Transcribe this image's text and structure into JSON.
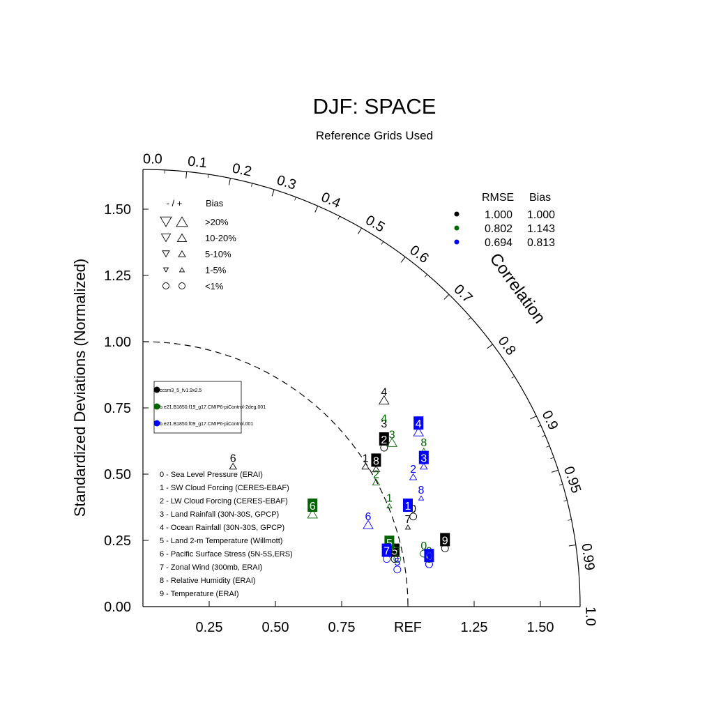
{
  "chart_data": {
    "type": "taylor",
    "title": "DJF: SPACE",
    "subtitle": "Reference Grids Used",
    "ylabel": "Standardized Deviations (Normalized)",
    "corr_title": "Correlation",
    "ref_label": "REF",
    "std_range": [
      0,
      1.65
    ],
    "std_ticks_y": [
      "0.00",
      "0.25",
      "0.50",
      "0.75",
      "1.00",
      "1.25",
      "1.50"
    ],
    "std_ticks_x": [
      "0.25",
      "0.50",
      "0.75",
      "REF",
      "1.25",
      "1.50"
    ],
    "corr_ticks": [
      "0.0",
      "0.1",
      "0.2",
      "0.3",
      "0.4",
      "0.5",
      "0.6",
      "0.7",
      "0.8",
      "0.9",
      "0.95",
      "0.99",
      "1.0"
    ],
    "ref_arc_std": 1.0,
    "bias_legend": {
      "header_sign": "- / +",
      "header_bias": "Bias",
      "rows": [
        ">20%",
        "10-20%",
        "5-10%",
        "1-5%",
        "<1%"
      ]
    },
    "stats_table": {
      "headers": [
        "RMSE",
        "Bias"
      ],
      "rows": [
        {
          "color": "#000000",
          "rmse": "1.000",
          "bias": "1.000"
        },
        {
          "color": "#006400",
          "rmse": "0.802",
          "bias": "1.143"
        },
        {
          "color": "#0000ff",
          "rmse": "0.694",
          "bias": "0.813"
        }
      ]
    },
    "series": [
      {
        "name": "ccsm3_5_fv1.9x2.5",
        "color": "#000000"
      },
      {
        "name": "b.e21.B1850.f19_g17.CMIP6-piControl-2deg.001",
        "color": "#006400"
      },
      {
        "name": "b.e21.B1850.f09_g17.CMIP6-piControl.001",
        "color": "#0000ff"
      }
    ],
    "variables": [
      "0 - Sea Level Pressure (ERAI)",
      "1 - SW Cloud Forcing (CERES-EBAF)",
      "2 - LW Cloud Forcing (CERES-EBAF)",
      "3 - Land Rainfall (30N-30S, GPCP)",
      "4 - Ocean Rainfall (30N-30S, GPCP)",
      "5 - Land 2-m Temperature (Willmott)",
      "6 - Pacific Surface Stress (5N-5S,ERS)",
      "7 - Zonal Wind (300mb, ERAI)",
      "8 - Relative Humidity (ERAI)",
      "9 - Temperature (ERAI)"
    ],
    "points": [
      {
        "s": 0,
        "v": "0",
        "x": 1.02,
        "y": 0.34,
        "box": false,
        "marker": "circle"
      },
      {
        "s": 0,
        "v": "1",
        "x": 0.84,
        "y": 0.53,
        "box": false,
        "marker": "up-sm"
      },
      {
        "s": 0,
        "v": "2",
        "x": 0.91,
        "y": 0.6,
        "box": true,
        "marker": "circle"
      },
      {
        "s": 0,
        "v": "3",
        "x": 0.91,
        "y": 0.66,
        "box": false,
        "marker": "none"
      },
      {
        "s": 0,
        "v": "4",
        "x": 0.91,
        "y": 0.78,
        "box": false,
        "marker": "up-md"
      },
      {
        "s": 0,
        "v": "5",
        "x": 0.95,
        "y": 0.18,
        "box": true,
        "marker": "circle"
      },
      {
        "s": 0,
        "v": "6",
        "x": 0.34,
        "y": 0.53,
        "box": false,
        "marker": "up-sm"
      },
      {
        "s": 0,
        "v": "7",
        "x": 1.0,
        "y": 0.3,
        "box": false,
        "marker": "up-xs"
      },
      {
        "s": 0,
        "v": "8",
        "x": 0.88,
        "y": 0.52,
        "box": true,
        "marker": "up-sm"
      },
      {
        "s": 0,
        "v": "9",
        "x": 1.14,
        "y": 0.22,
        "box": true,
        "marker": "circle"
      },
      {
        "s": 1,
        "v": "0",
        "x": 1.06,
        "y": 0.2,
        "box": false,
        "marker": "circle"
      },
      {
        "s": 1,
        "v": "1",
        "x": 0.93,
        "y": 0.38,
        "box": false,
        "marker": "up-xs"
      },
      {
        "s": 1,
        "v": "2",
        "x": 0.88,
        "y": 0.47,
        "box": false,
        "marker": "up-sm"
      },
      {
        "s": 1,
        "v": "3",
        "x": 0.94,
        "y": 0.62,
        "box": false,
        "marker": "up-md"
      },
      {
        "s": 1,
        "v": "4",
        "x": 0.91,
        "y": 0.68,
        "box": false,
        "marker": "none"
      },
      {
        "s": 1,
        "v": "5",
        "x": 0.93,
        "y": 0.21,
        "box": true,
        "marker": "circle"
      },
      {
        "s": 1,
        "v": "6",
        "x": 0.64,
        "y": 0.35,
        "box": true,
        "marker": "up-md"
      },
      {
        "s": 1,
        "v": "7",
        "x": 0.96,
        "y": 0.18,
        "box": false,
        "marker": "circle"
      },
      {
        "s": 1,
        "v": "8",
        "x": 1.06,
        "y": 0.59,
        "box": false,
        "marker": "up-xs"
      },
      {
        "s": 1,
        "v": "9",
        "x": 1.08,
        "y": 0.18,
        "box": false,
        "marker": "circle"
      },
      {
        "s": 2,
        "v": "0",
        "x": 1.08,
        "y": 0.16,
        "box": true,
        "marker": "circle"
      },
      {
        "s": 2,
        "v": "1",
        "x": 1.0,
        "y": 0.35,
        "box": true,
        "marker": "none"
      },
      {
        "s": 2,
        "v": "2",
        "x": 1.02,
        "y": 0.49,
        "box": false,
        "marker": "up-sm"
      },
      {
        "s": 2,
        "v": "3",
        "x": 1.06,
        "y": 0.53,
        "box": true,
        "marker": "up-sm"
      },
      {
        "s": 2,
        "v": "4",
        "x": 1.04,
        "y": 0.66,
        "box": true,
        "marker": "up-md"
      },
      {
        "s": 2,
        "v": "5",
        "x": 0.96,
        "y": 0.14,
        "box": false,
        "marker": "circle"
      },
      {
        "s": 2,
        "v": "6",
        "x": 0.85,
        "y": 0.31,
        "box": false,
        "marker": "up-md"
      },
      {
        "s": 2,
        "v": "7",
        "x": 0.92,
        "y": 0.18,
        "box": true,
        "marker": "circle"
      },
      {
        "s": 2,
        "v": "8",
        "x": 1.05,
        "y": 0.41,
        "box": false,
        "marker": "up-xs"
      },
      {
        "s": 2,
        "v": "9",
        "x": 1.08,
        "y": 0.16,
        "box": false,
        "marker": "circle"
      }
    ]
  }
}
